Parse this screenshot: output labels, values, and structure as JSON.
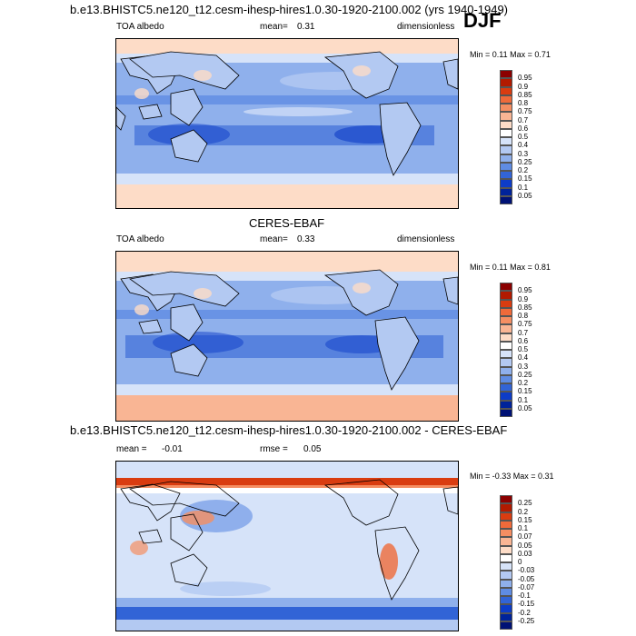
{
  "season": "DJF",
  "panels": [
    {
      "title": "b.e13.BHISTC5.ne120_t12.cesm-ihesp-hires1.0.30-1920-2100.002 (yrs 1940-1949)",
      "left_label": "TOA albedo",
      "center_label": "mean=",
      "center_value": "0.31",
      "right_label": "dimensionless",
      "minmax": "Min =  0.11 Max =  0.71",
      "levels": [
        "0.95",
        "0.9",
        "0.85",
        "0.8",
        "0.75",
        "0.7",
        "0.6",
        "0.5",
        "0.4",
        "0.3",
        "0.25",
        "0.2",
        "0.15",
        "0.1",
        "0.05"
      ],
      "colors": [
        "#8b0000",
        "#b21a00",
        "#d93c10",
        "#ef6a3a",
        "#f58e62",
        "#f9b594",
        "#fddcc7",
        "#ffffff",
        "#d6e3f9",
        "#b3c9f2",
        "#8fb0ec",
        "#5f8ce3",
        "#3264d6",
        "#0d3cc7",
        "#00239a",
        "#001275"
      ]
    },
    {
      "title": "CERES-EBAF",
      "left_label": "TOA albedo",
      "center_label": "mean=",
      "center_value": "0.33",
      "right_label": "dimensionless",
      "minmax": "Min =  0.11 Max =  0.81",
      "levels": [
        "0.95",
        "0.9",
        "0.85",
        "0.8",
        "0.75",
        "0.7",
        "0.6",
        "0.5",
        "0.4",
        "0.3",
        "0.25",
        "0.2",
        "0.15",
        "0.1",
        "0.05"
      ],
      "colors": [
        "#8b0000",
        "#b21a00",
        "#d93c10",
        "#ef6a3a",
        "#f58e62",
        "#f9b594",
        "#fddcc7",
        "#ffffff",
        "#d6e3f9",
        "#b3c9f2",
        "#8fb0ec",
        "#5f8ce3",
        "#3264d6",
        "#0d3cc7",
        "#00239a",
        "#001275"
      ]
    },
    {
      "title": "b.e13.BHISTC5.ne120_t12.cesm-ihesp-hires1.0.30-1920-2100.002 - CERES-EBAF",
      "left_label": "mean =",
      "left_value": "-0.01",
      "center_label": "rmse =",
      "center_value": "0.05",
      "right_label": "",
      "minmax": "Min = -0.33 Max =  0.31",
      "levels": [
        "0.25",
        "0.2",
        "0.15",
        "0.1",
        "0.07",
        "0.05",
        "0.03",
        "0",
        "-0.03",
        "-0.05",
        "-0.07",
        "-0.1",
        "-0.15",
        "-0.2",
        "-0.25"
      ],
      "colors": [
        "#8b0000",
        "#b21a00",
        "#d93c10",
        "#ef6a3a",
        "#f58e62",
        "#f9b594",
        "#fddcc7",
        "#ffffff",
        "#d6e3f9",
        "#b3c9f2",
        "#8fb0ec",
        "#5f8ce3",
        "#3264d6",
        "#0d3cc7",
        "#00239a",
        "#001275"
      ]
    }
  ]
}
